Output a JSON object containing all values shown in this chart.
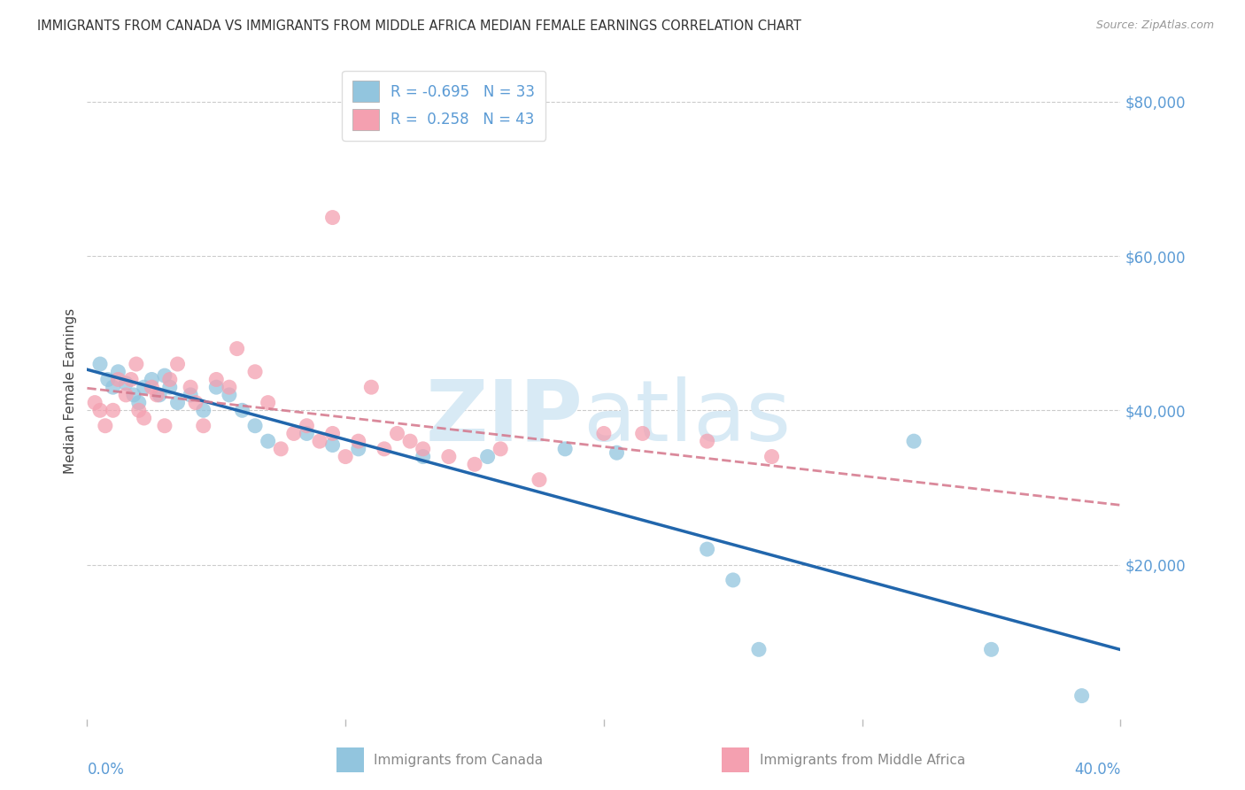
{
  "title": "IMMIGRANTS FROM CANADA VS IMMIGRANTS FROM MIDDLE AFRICA MEDIAN FEMALE EARNINGS CORRELATION CHART",
  "source": "Source: ZipAtlas.com",
  "ylabel": "Median Female Earnings",
  "legend_label1": "Immigrants from Canada",
  "legend_label2": "Immigrants from Middle Africa",
  "R_canada": -0.695,
  "N_canada": 33,
  "R_africa": 0.258,
  "N_africa": 43,
  "color_canada": "#92c5de",
  "color_africa": "#f4a0b0",
  "trendline_color_canada": "#2166ac",
  "trendline_color_africa": "#d4758a",
  "canada_x": [
    0.5,
    0.8,
    1.0,
    1.2,
    1.5,
    1.8,
    2.0,
    2.2,
    2.5,
    2.8,
    3.0,
    3.2,
    3.5,
    4.0,
    4.5,
    5.0,
    5.5,
    6.0,
    6.5,
    7.0,
    8.5,
    9.5,
    10.5,
    13.0,
    15.5,
    18.5,
    20.5,
    24.0,
    25.0,
    26.0,
    32.0,
    35.0,
    38.5
  ],
  "canada_y": [
    46000,
    44000,
    43000,
    45000,
    43500,
    42000,
    41000,
    43000,
    44000,
    42000,
    44500,
    43000,
    41000,
    42000,
    40000,
    43000,
    42000,
    40000,
    38000,
    36000,
    37000,
    35500,
    35000,
    34000,
    34000,
    35000,
    34500,
    22000,
    18000,
    9000,
    36000,
    9000,
    3000
  ],
  "africa_x": [
    0.3,
    0.5,
    0.7,
    1.0,
    1.2,
    1.5,
    1.7,
    1.9,
    2.0,
    2.2,
    2.5,
    2.7,
    3.0,
    3.2,
    3.5,
    4.0,
    4.2,
    4.5,
    5.0,
    5.5,
    5.8,
    6.5,
    7.0,
    7.5,
    8.0,
    8.5,
    9.0,
    9.5,
    10.0,
    10.5,
    11.0,
    11.5,
    12.0,
    12.5,
    13.0,
    14.0,
    15.0,
    16.0,
    17.5,
    20.0,
    21.5,
    24.0,
    26.5
  ],
  "africa_y": [
    41000,
    40000,
    38000,
    40000,
    44000,
    42000,
    44000,
    46000,
    40000,
    39000,
    43000,
    42000,
    38000,
    44000,
    46000,
    43000,
    41000,
    38000,
    44000,
    43000,
    48000,
    45000,
    41000,
    35000,
    37000,
    38000,
    36000,
    37000,
    34000,
    36000,
    43000,
    35000,
    37000,
    36000,
    35000,
    34000,
    33000,
    35000,
    31000,
    37000,
    37000,
    36000,
    34000
  ],
  "africa_outlier_x": [
    9.5
  ],
  "africa_outlier_y": [
    65000
  ],
  "xlim_pct": [
    0.0,
    40.0
  ],
  "ylim": [
    0,
    85000
  ],
  "yticks": [
    20000,
    40000,
    60000,
    80000
  ],
  "ytick_labels": [
    "$20,000",
    "$40,000",
    "$60,000",
    "$80,000"
  ],
  "xticks_pct": [
    0.0,
    10.0,
    20.0,
    30.0,
    40.0
  ],
  "grid_color": "#cccccc",
  "watermark_color": "#d8eaf5",
  "right_label_color": "#5b9bd5",
  "title_color": "#333333",
  "source_color": "#999999"
}
